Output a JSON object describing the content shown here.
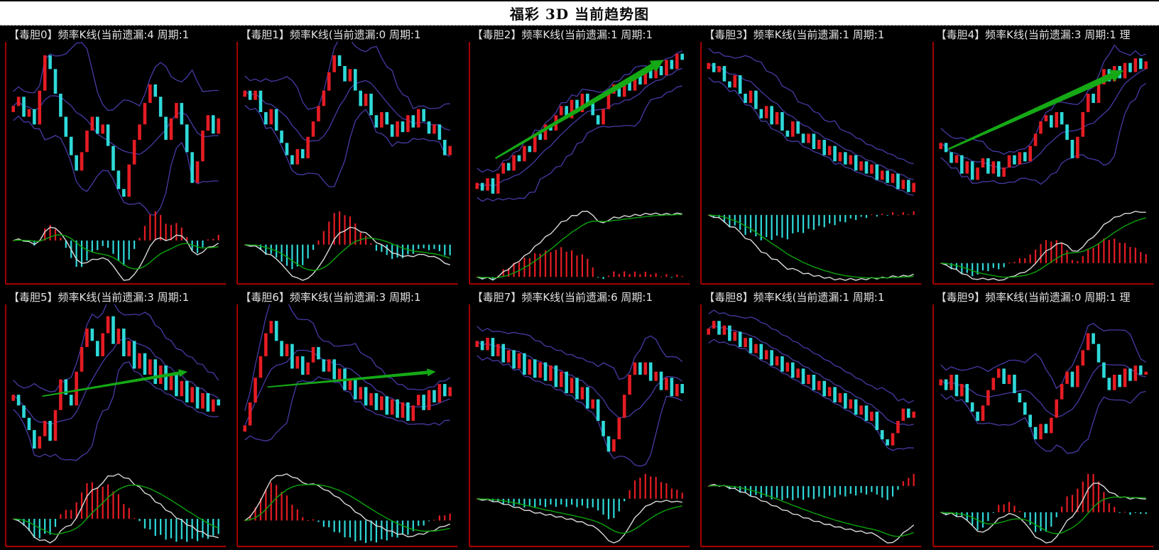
{
  "page": {
    "title": "福彩 3D 当前趋势图",
    "background": "#000000"
  },
  "layout": {
    "rows": 2,
    "cols": 5
  },
  "colors": {
    "frame_red": "#a00000",
    "candle_up": "#e51c23",
    "candle_down": "#2fd9d9",
    "bollinger": "#453ba5",
    "macd_dif_line": "#d9d9d9",
    "macd_dea_line": "#0aa30a",
    "arrow_green": "#15a915",
    "header_text": "#e4e4e4",
    "title_text": "#0a0a0a",
    "titlebar_bg": "#ffffff"
  },
  "chart_data": [
    {
      "type": "candlestick",
      "title": "【毒胆0】频率K线(当前遗漏:4 周期:1",
      "digit": 0,
      "omission": 4,
      "period": 1,
      "closes": [
        62,
        68,
        55,
        60,
        50,
        72,
        95,
        86,
        70,
        55,
        42,
        30,
        20,
        32,
        46,
        55,
        44,
        50,
        36,
        20,
        8,
        3,
        24,
        40,
        50,
        64,
        76,
        68,
        55,
        40,
        54,
        64,
        50,
        32,
        12,
        26,
        46,
        56,
        44,
        54
      ],
      "arrow": null
    },
    {
      "type": "candlestick",
      "title": "【毒胆1】频率K线(当前遗漏:0 周期:1",
      "digit": 1,
      "omission": 0,
      "period": 1,
      "closes": [
        72,
        66,
        72,
        58,
        50,
        60,
        46,
        38,
        30,
        24,
        34,
        28,
        42,
        52,
        62,
        72,
        84,
        95,
        88,
        78,
        86,
        72,
        62,
        70,
        56,
        48,
        58,
        50,
        42,
        52,
        45,
        56,
        48,
        60,
        52,
        44,
        50,
        40,
        30,
        36
      ],
      "arrow": null
    },
    {
      "type": "candlestick",
      "title": "【毒胆2】频率K线(当前遗漏:1 周期:1",
      "digit": 2,
      "omission": 1,
      "period": 1,
      "closes": [
        12,
        7,
        15,
        5,
        18,
        25,
        20,
        30,
        26,
        36,
        32,
        44,
        40,
        50,
        46,
        56,
        62,
        54,
        66,
        58,
        70,
        64,
        56,
        50,
        60,
        70,
        76,
        68,
        78,
        72,
        82,
        76,
        86,
        80,
        88,
        82,
        92,
        86,
        96,
        92
      ],
      "arrow": {
        "x1": 0.1,
        "y1": 0.72,
        "x2": 0.9,
        "y2": 0.08,
        "weight": "thick"
      }
    },
    {
      "type": "candlestick",
      "title": "【毒胆3】频率K线(当前遗漏:1 周期:1",
      "digit": 3,
      "omission": 1,
      "period": 1,
      "closes": [
        90,
        84,
        88,
        78,
        74,
        82,
        70,
        64,
        72,
        60,
        54,
        62,
        50,
        58,
        46,
        42,
        52,
        44,
        38,
        44,
        34,
        40,
        30,
        36,
        26,
        32,
        24,
        30,
        20,
        26,
        18,
        24,
        14,
        20,
        12,
        18,
        8,
        14,
        6,
        12
      ],
      "arrow": null
    },
    {
      "type": "candlestick",
      "title": "【毒胆4】频率K线(当前遗漏:3 周期:1 理",
      "digit": 4,
      "omission": 3,
      "period": 1,
      "closes": [
        38,
        32,
        25,
        30,
        18,
        26,
        14,
        22,
        28,
        18,
        26,
        16,
        22,
        30,
        24,
        32,
        26,
        36,
        44,
        52,
        56,
        48,
        58,
        50,
        40,
        28,
        42,
        58,
        70,
        64,
        76,
        86,
        78,
        88,
        80,
        90,
        84,
        93,
        86,
        91
      ],
      "arrow": {
        "x1": 0.05,
        "y1": 0.66,
        "x2": 0.88,
        "y2": 0.15,
        "weight": "thick"
      }
    },
    {
      "type": "candlestick",
      "title": "【毒胆5】频率K线(当前遗漏:3 周期:1",
      "digit": 5,
      "omission": 3,
      "period": 1,
      "closes": [
        45,
        38,
        30,
        22,
        10,
        18,
        28,
        15,
        35,
        55,
        45,
        38,
        60,
        76,
        88,
        80,
        70,
        85,
        96,
        78,
        88,
        70,
        80,
        62,
        72,
        58,
        68,
        52,
        64,
        48,
        58,
        44,
        54,
        40,
        50,
        36,
        46,
        34,
        42,
        38
      ],
      "arrow": {
        "x1": 0.15,
        "y1": 0.56,
        "x2": 0.84,
        "y2": 0.4,
        "weight": "medium"
      }
    },
    {
      "type": "candlestick",
      "title": "【毒胆6】频率K线(当前遗漏:3 周期:1",
      "digit": 6,
      "omission": 3,
      "period": 1,
      "closes": [
        25,
        40,
        56,
        70,
        85,
        93,
        80,
        70,
        78,
        62,
        70,
        58,
        66,
        76,
        68,
        60,
        68,
        55,
        62,
        48,
        55,
        42,
        50,
        38,
        46,
        35,
        44,
        32,
        42,
        30,
        40,
        28,
        38,
        45,
        35,
        48,
        40,
        52,
        44,
        50
      ],
      "arrow": {
        "x1": 0.12,
        "y1": 0.5,
        "x2": 0.92,
        "y2": 0.4,
        "weight": "medium"
      }
    },
    {
      "type": "candlestick",
      "title": "【毒胆7】频率K线(当前遗漏:6 周期:1",
      "digit": 7,
      "omission": 6,
      "period": 1,
      "closes": [
        80,
        74,
        82,
        70,
        78,
        66,
        74,
        62,
        72,
        58,
        68,
        56,
        66,
        54,
        64,
        50,
        60,
        46,
        56,
        42,
        50,
        36,
        42,
        28,
        18,
        8,
        16,
        30,
        45,
        58,
        66,
        58,
        66,
        54,
        60,
        48,
        56,
        44,
        52,
        46
      ],
      "arrow": null
    },
    {
      "type": "candlestick",
      "title": "【毒胆8】频率K线(当前遗漏:1 周期:1",
      "digit": 8,
      "omission": 1,
      "period": 1,
      "closes": [
        88,
        93,
        84,
        90,
        80,
        86,
        76,
        82,
        72,
        78,
        68,
        74,
        64,
        70,
        60,
        66,
        56,
        62,
        52,
        58,
        48,
        54,
        44,
        50,
        40,
        46,
        36,
        42,
        32,
        38,
        28,
        34,
        22,
        16,
        12,
        20,
        28,
        36,
        30,
        34
      ],
      "arrow": null
    },
    {
      "type": "candlestick",
      "title": "【毒胆9】频率K线(当前遗漏:0 周期:1 理",
      "digit": 9,
      "omission": 0,
      "period": 1,
      "closes": [
        55,
        48,
        58,
        44,
        52,
        40,
        34,
        28,
        38,
        48,
        56,
        62,
        52,
        58,
        46,
        40,
        32,
        24,
        16,
        26,
        20,
        30,
        42,
        52,
        60,
        50,
        64,
        74,
        85,
        78,
        66,
        56,
        48,
        58,
        50,
        62,
        54,
        64,
        58,
        60
      ],
      "arrow": null
    }
  ]
}
